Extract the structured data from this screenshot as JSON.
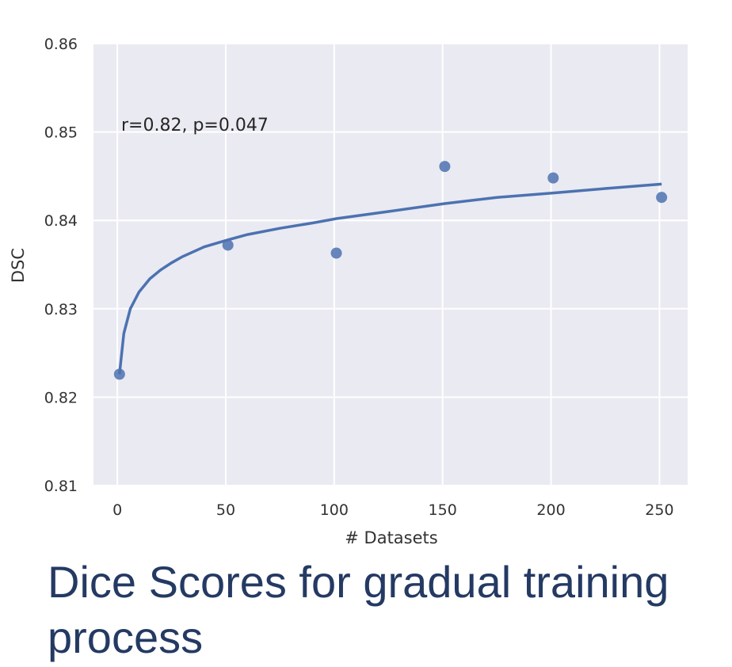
{
  "chart_data": {
    "type": "scatter",
    "x": [
      1,
      51,
      101,
      151,
      201,
      251
    ],
    "y": [
      0.8226,
      0.8372,
      0.8363,
      0.8461,
      0.8448,
      0.8426
    ],
    "fit": {
      "type": "logarithmic",
      "x": [
        1,
        3,
        6,
        10,
        15,
        20,
        25,
        30,
        40,
        51,
        60,
        75,
        90,
        101,
        125,
        151,
        175,
        201,
        225,
        251
      ],
      "y": [
        0.8226,
        0.8272,
        0.83,
        0.8319,
        0.8334,
        0.8344,
        0.8352,
        0.8359,
        0.837,
        0.8378,
        0.8384,
        0.8391,
        0.8397,
        0.8402,
        0.841,
        0.8419,
        0.8426,
        0.8431,
        0.8436,
        0.8441
      ]
    },
    "title": "",
    "xlabel": "# Datasets",
    "ylabel": "DSC",
    "xlim": [
      -11,
      263
    ],
    "ylim": [
      0.81,
      0.86
    ],
    "xticks": [
      0,
      50,
      100,
      150,
      200,
      250
    ],
    "xtick_labels": [
      "0",
      "50",
      "100",
      "150",
      "200",
      "250"
    ],
    "yticks": [
      0.81,
      0.82,
      0.83,
      0.84,
      0.85,
      0.86
    ],
    "ytick_labels": [
      "0.81",
      "0.82",
      "0.83",
      "0.84",
      "0.85",
      "0.86"
    ],
    "annotation": "r=0.82, p=0.047",
    "grid": true
  },
  "colors": {
    "background": "#eaeaf2",
    "grid": "#ffffff",
    "series": "#4c72b0"
  },
  "caption": "Dice Scores for gradual training process"
}
